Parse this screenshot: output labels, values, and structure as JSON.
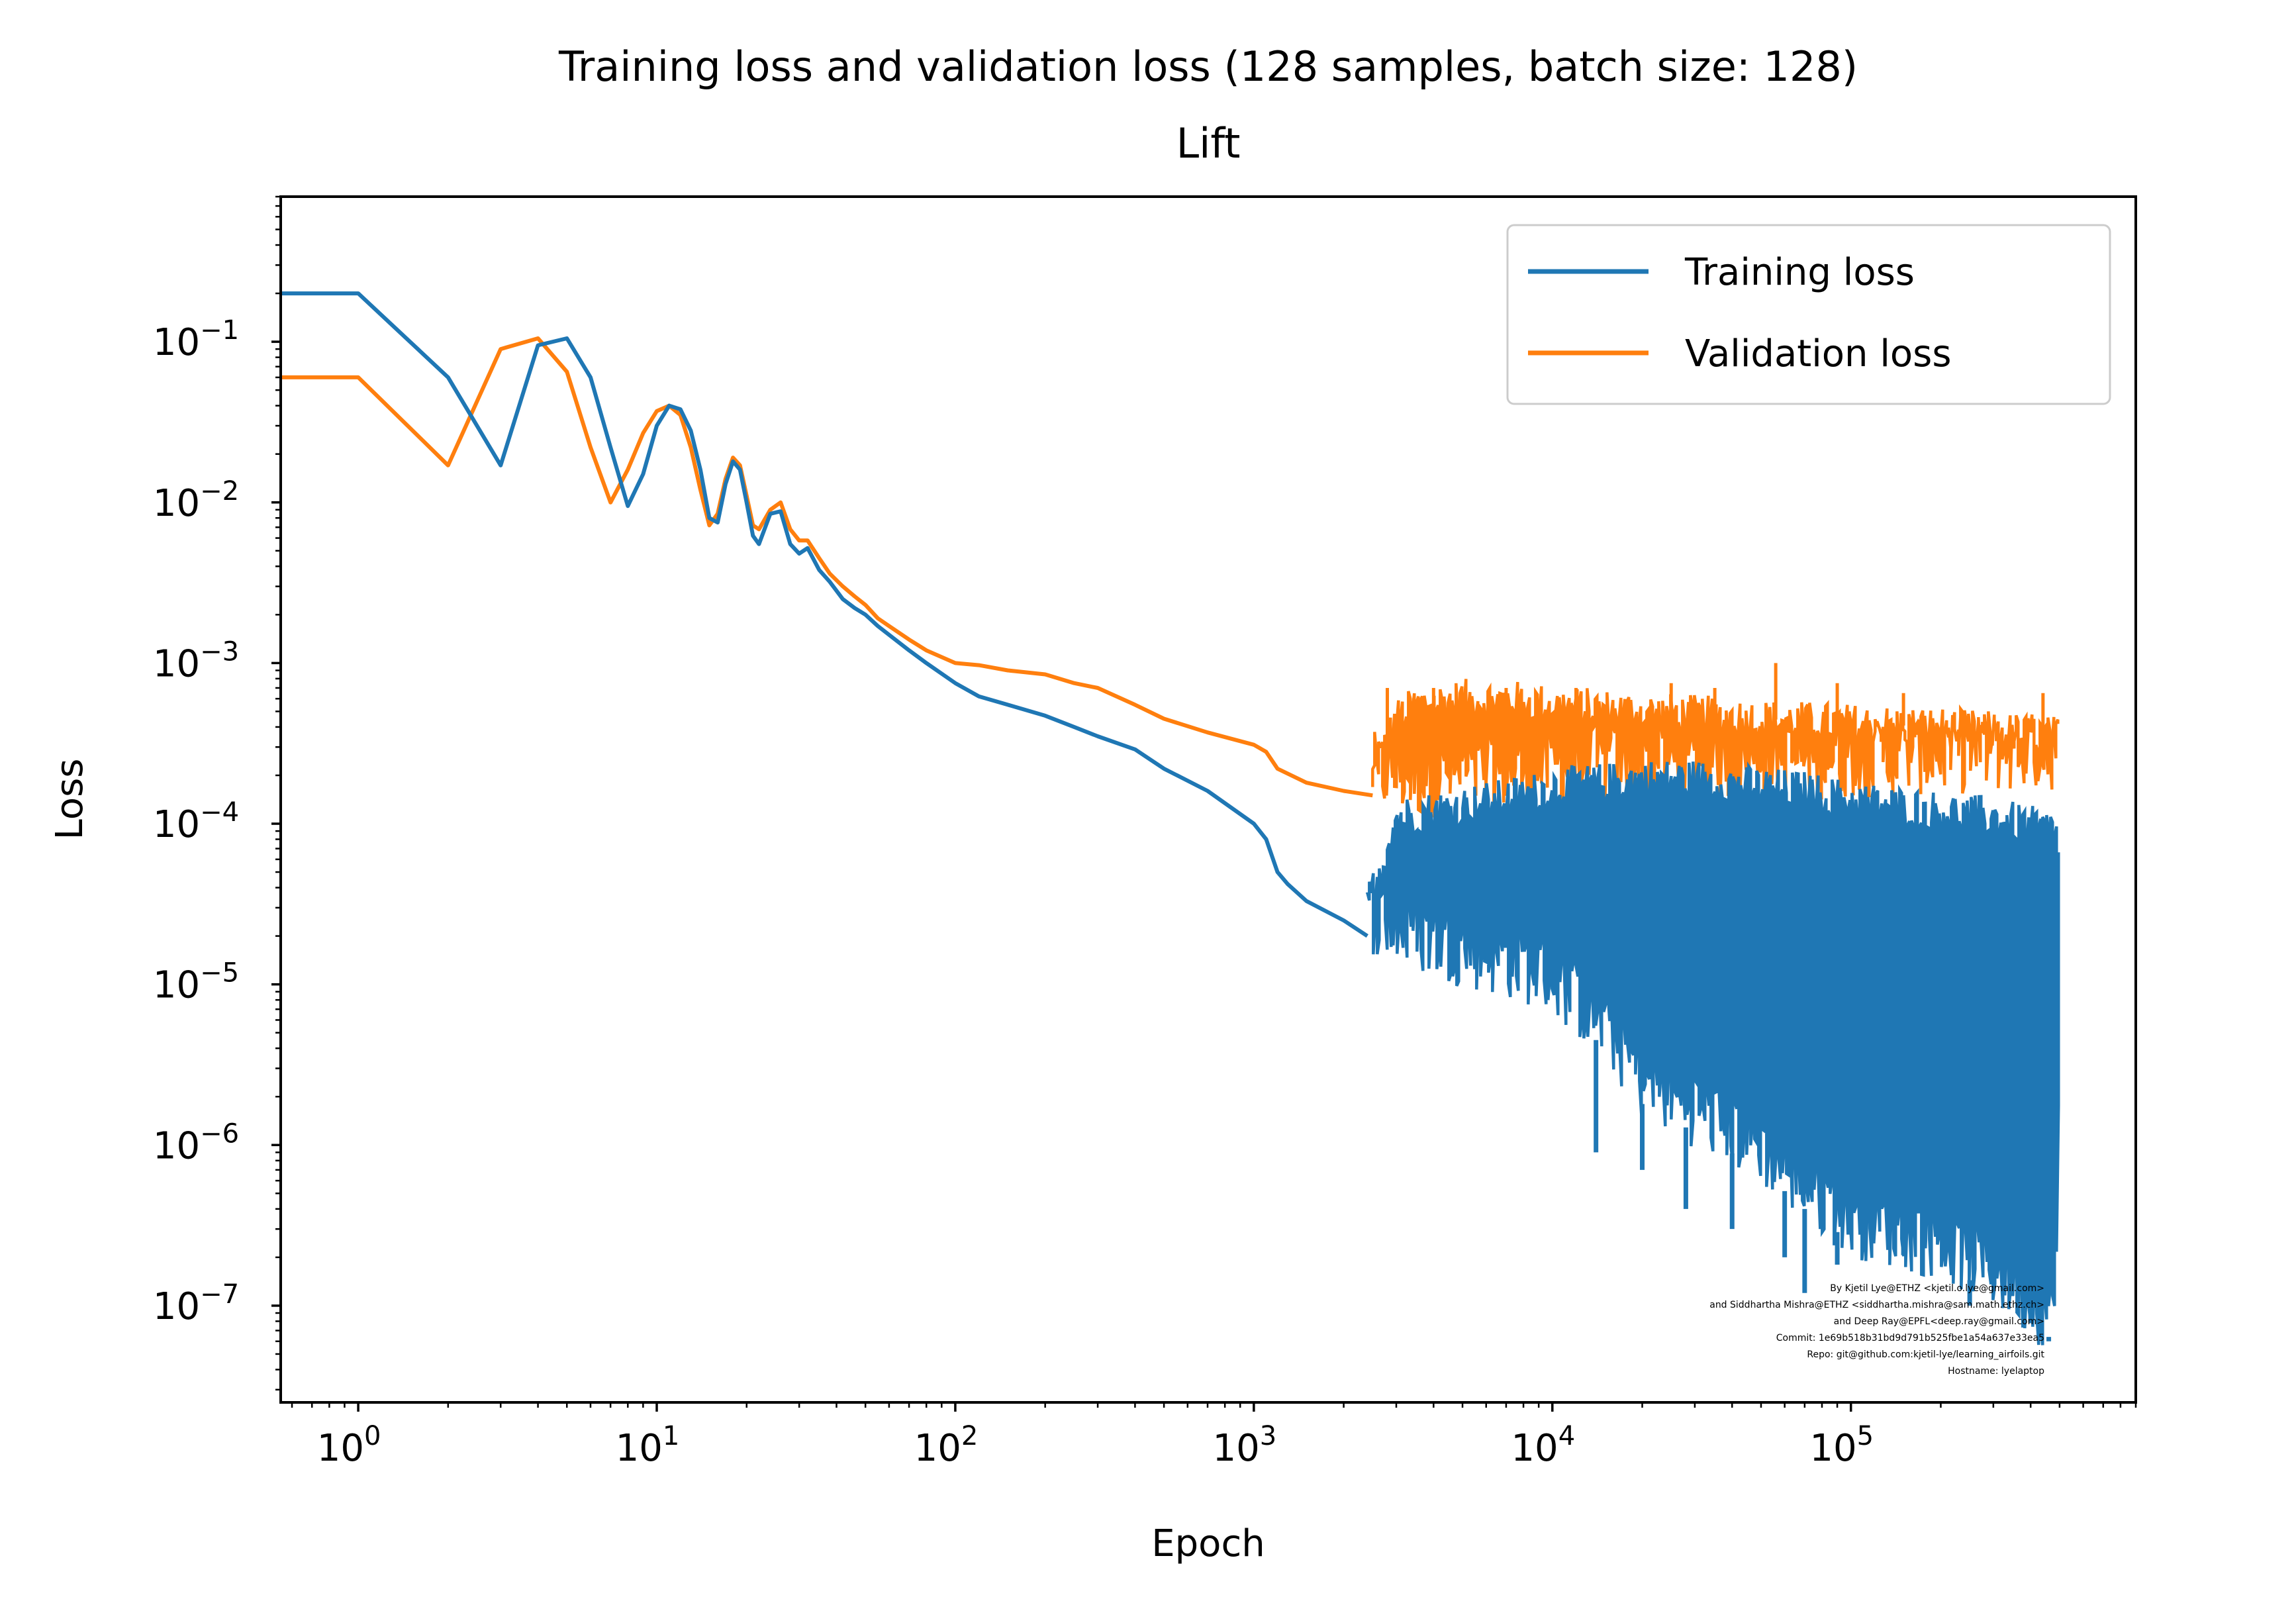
{
  "chart_data": {
    "type": "line",
    "title": "Training loss and validation loss (128 samples, batch size: 128)",
    "subtitle": "Lift",
    "xlabel": "Epoch",
    "ylabel": "Loss",
    "x_scale": "log",
    "y_scale": "log",
    "xlim": [
      0.55,
      900000
    ],
    "ylim": [
      2.5e-08,
      0.8
    ],
    "grid": false,
    "legend_position": "top-right",
    "x_ticks": [
      {
        "value": 1,
        "base": "10",
        "exp": "0"
      },
      {
        "value": 10,
        "base": "10",
        "exp": "1"
      },
      {
        "value": 100,
        "base": "10",
        "exp": "2"
      },
      {
        "value": 1000,
        "base": "10",
        "exp": "3"
      },
      {
        "value": 10000,
        "base": "10",
        "exp": "4"
      },
      {
        "value": 100000,
        "base": "10",
        "exp": "5"
      }
    ],
    "y_ticks": [
      {
        "value": 0.1,
        "base": "10",
        "exp": "−1"
      },
      {
        "value": 0.01,
        "base": "10",
        "exp": "−2"
      },
      {
        "value": 0.001,
        "base": "10",
        "exp": "−3"
      },
      {
        "value": 0.0001,
        "base": "10",
        "exp": "−4"
      },
      {
        "value": 1e-05,
        "base": "10",
        "exp": "−5"
      },
      {
        "value": 1e-06,
        "base": "10",
        "exp": "−6"
      },
      {
        "value": 1e-07,
        "base": "10",
        "exp": "−7"
      }
    ],
    "series": [
      {
        "name": "Training loss",
        "color": "#1f77b4",
        "x": [
          0.55,
          1,
          2,
          3,
          4,
          5,
          6,
          7,
          8,
          9,
          10,
          11,
          12,
          13,
          14,
          15,
          16,
          17,
          18,
          19,
          20,
          21,
          22,
          24,
          26,
          28,
          30,
          32,
          35,
          38,
          42,
          46,
          50,
          55,
          60,
          70,
          80,
          100,
          120,
          150,
          200,
          250,
          300,
          400,
          500,
          700,
          1000,
          1100,
          1200,
          1300,
          1500,
          2000,
          2400
        ],
        "y": [
          0.2,
          0.2,
          0.06,
          0.017,
          0.095,
          0.105,
          0.06,
          0.022,
          0.0095,
          0.015,
          0.03,
          0.04,
          0.038,
          0.028,
          0.016,
          0.008,
          0.0075,
          0.013,
          0.018,
          0.016,
          0.01,
          0.0062,
          0.0055,
          0.0085,
          0.0088,
          0.0055,
          0.0048,
          0.0052,
          0.0038,
          0.0032,
          0.0025,
          0.0022,
          0.002,
          0.0017,
          0.0015,
          0.0012,
          0.001,
          0.00075,
          0.00062,
          0.00055,
          0.00047,
          0.0004,
          0.00035,
          0.00029,
          0.00022,
          0.00016,
          0.0001,
          8e-05,
          5e-05,
          4.2e-05,
          3.3e-05,
          2.5e-05,
          2e-05
        ],
        "noise_band": {
          "x": [
            2400,
            3000,
            5000,
            8000,
            10000,
            15000,
            20000,
            30000,
            50000,
            70000,
            100000,
            200000,
            300000,
            480000,
            500000
          ],
          "upper": [
            3e-05,
            0.00011,
            0.00013,
            0.00015,
            0.00017,
            0.00018,
            0.00019,
            0.00019,
            0.00017,
            0.00016,
            0.00014,
            0.00012,
            0.00011,
            9e-05,
            8e-05
          ],
          "lower": [
            2e-05,
            1.6e-05,
            1.2e-05,
            9.5e-06,
            8e-06,
            4e-06,
            1.8e-06,
            1.2e-06,
            7e-07,
            4e-07,
            2.5e-07,
            1.8e-07,
            1.2e-07,
            6e-08,
            2e-06
          ],
          "dips": [
            {
              "x": 14000,
              "y": 9e-07
            },
            {
              "x": 20000,
              "y": 7e-07
            },
            {
              "x": 28000,
              "y": 4e-07
            },
            {
              "x": 40000,
              "y": 3e-07
            },
            {
              "x": 60000,
              "y": 2e-07
            },
            {
              "x": 70000,
              "y": 1.2e-07
            },
            {
              "x": 90000,
              "y": 1.8e-07
            },
            {
              "x": 150000,
              "y": 2.5e-07
            },
            {
              "x": 250000,
              "y": 1e-07
            },
            {
              "x": 400000,
              "y": 9e-08
            },
            {
              "x": 460000,
              "y": 6e-08
            }
          ]
        }
      },
      {
        "name": "Validation loss",
        "color": "#ff7f0e",
        "x": [
          0.55,
          1,
          2,
          3,
          4,
          5,
          6,
          7,
          8,
          9,
          10,
          11,
          12,
          13,
          14,
          15,
          16,
          17,
          18,
          19,
          20,
          21,
          22,
          24,
          26,
          28,
          30,
          32,
          35,
          38,
          42,
          46,
          50,
          55,
          60,
          70,
          80,
          100,
          120,
          150,
          200,
          250,
          300,
          400,
          500,
          700,
          1000,
          1100,
          1200,
          1500,
          2000,
          2500
        ],
        "y": [
          0.06,
          0.06,
          0.017,
          0.09,
          0.105,
          0.065,
          0.022,
          0.01,
          0.016,
          0.027,
          0.037,
          0.04,
          0.035,
          0.022,
          0.012,
          0.0072,
          0.0085,
          0.014,
          0.019,
          0.017,
          0.011,
          0.0072,
          0.0068,
          0.009,
          0.01,
          0.0068,
          0.0058,
          0.0058,
          0.0045,
          0.0036,
          0.003,
          0.0026,
          0.0023,
          0.0019,
          0.0017,
          0.0014,
          0.0012,
          0.001,
          0.00097,
          0.0009,
          0.00085,
          0.00075,
          0.0007,
          0.00055,
          0.00045,
          0.00037,
          0.00031,
          0.00028,
          0.00022,
          0.00018,
          0.00016,
          0.00015
        ],
        "noise_band": {
          "x": [
            2500,
            3000,
            3500,
            5000,
            8000,
            10000,
            20000,
            50000,
            100000,
            200000,
            500000
          ],
          "upper": [
            0.0002,
            0.00045,
            0.00055,
            0.0006,
            0.00058,
            0.00055,
            0.0005,
            0.00045,
            0.00042,
            0.0004,
            0.00035
          ],
          "lower": [
            0.00015,
            0.00014,
            0.000135,
            0.00014,
            0.00015,
            0.00016,
            0.00017,
            0.00017,
            0.00018,
            0.00019,
            0.0002
          ],
          "spikes": [
            {
              "x": 2800,
              "y": 0.0007
            },
            {
              "x": 4000,
              "y": 0.0007
            },
            {
              "x": 7000,
              "y": 0.0007
            },
            {
              "x": 12000,
              "y": 0.0007
            },
            {
              "x": 25000,
              "y": 0.00075
            },
            {
              "x": 35000,
              "y": 0.0007
            },
            {
              "x": 56000,
              "y": 0.001
            },
            {
              "x": 90000,
              "y": 0.00075
            },
            {
              "x": 150000,
              "y": 0.00065
            },
            {
              "x": 440000,
              "y": 0.00065
            }
          ]
        }
      }
    ],
    "credit_lines": [
      "By Kjetil Lye@ETHZ <kjetil.o.lye@gmail.com>",
      "and Siddhartha Mishra@ETHZ <siddhartha.mishra@sam.math.ethz.ch>",
      "and Deep Ray@EPFL<deep.ray@gmail.com>",
      "Commit: 1e69b518b31bd9d791b525fbe1a54a637e33ea5",
      "Repo: git@github.com:kjetil-lye/learning_airfoils.git",
      "Hostname: lyelaptop"
    ]
  }
}
